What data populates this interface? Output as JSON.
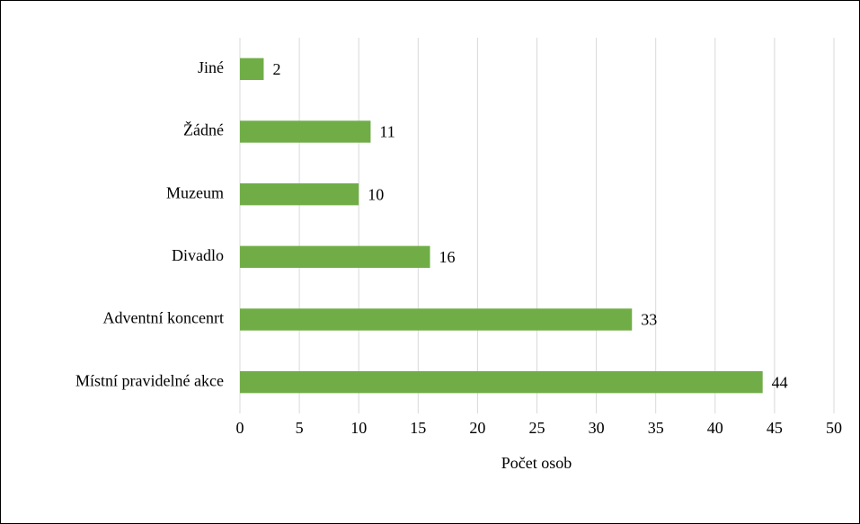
{
  "chart_data": {
    "type": "barh",
    "categories": [
      "Jiné",
      "Žádné",
      "Muzeum",
      "Divadlo",
      "Adventní koncenrt",
      "Místní pravidelné akce"
    ],
    "values": [
      2,
      11,
      10,
      16,
      33,
      44
    ],
    "color": "#70ad47",
    "xlabel": "Počet osob",
    "xlim": [
      0,
      50
    ],
    "xticks": [
      0,
      5,
      10,
      15,
      20,
      25,
      30,
      35,
      40,
      45,
      50
    ],
    "grid": true
  }
}
